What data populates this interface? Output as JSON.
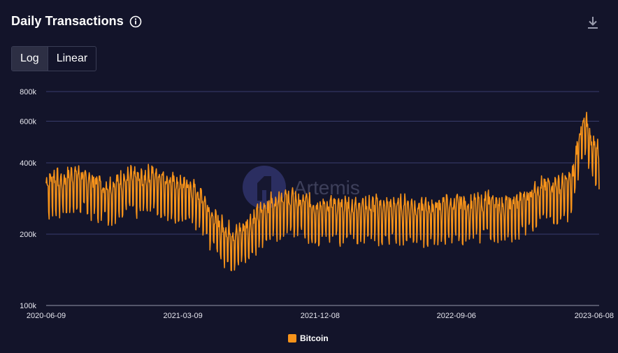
{
  "header": {
    "title": "Daily Transactions",
    "info_icon": "info-icon",
    "download_icon": "download-icon"
  },
  "scale_toggle": {
    "options": [
      "Log",
      "Linear"
    ],
    "selected": "Log"
  },
  "watermark": {
    "text": "Artemis"
  },
  "colors": {
    "background": "#13142a",
    "series": "#f7931a",
    "grid": "#3a3d6e"
  },
  "chart_data": {
    "type": "line",
    "y_scale": "log",
    "ylim": [
      100000,
      800000
    ],
    "y_ticks": [
      {
        "value": 100000,
        "label": "100k"
      },
      {
        "value": 200000,
        "label": "200k"
      },
      {
        "value": 400000,
        "label": "400k"
      },
      {
        "value": 600000,
        "label": "600k"
      },
      {
        "value": 800000,
        "label": "800k"
      }
    ],
    "x_ticks": [
      "2020-06-09",
      "2021-03-09",
      "2021-12-08",
      "2022-09-06",
      "2023-06-08"
    ],
    "xlim": [
      "2020-06-09",
      "2023-06-18"
    ],
    "grid": true,
    "legend_position": "bottom-center",
    "series": [
      {
        "name": "Bitcoin",
        "color": "#f7931a",
        "points": [
          [
            "2020-06-09",
            310000
          ],
          [
            "2020-06-23",
            330000
          ],
          [
            "2020-07-07",
            315000
          ],
          [
            "2020-07-21",
            325000
          ],
          [
            "2020-08-04",
            340000
          ],
          [
            "2020-08-18",
            330000
          ],
          [
            "2020-09-01",
            320000
          ],
          [
            "2020-09-15",
            315000
          ],
          [
            "2020-09-29",
            305000
          ],
          [
            "2020-10-13",
            300000
          ],
          [
            "2020-10-27",
            310000
          ],
          [
            "2020-11-10",
            320000
          ],
          [
            "2020-11-24",
            330000
          ],
          [
            "2020-12-08",
            320000
          ],
          [
            "2020-12-22",
            325000
          ],
          [
            "2021-01-05",
            340000
          ],
          [
            "2021-01-19",
            330000
          ],
          [
            "2021-02-02",
            320000
          ],
          [
            "2021-02-16",
            310000
          ],
          [
            "2021-03-02",
            300000
          ],
          [
            "2021-03-16",
            305000
          ],
          [
            "2021-03-30",
            290000
          ],
          [
            "2021-04-13",
            280000
          ],
          [
            "2021-04-27",
            250000
          ],
          [
            "2021-05-11",
            220000
          ],
          [
            "2021-05-25",
            205000
          ],
          [
            "2021-06-08",
            195000
          ],
          [
            "2021-06-22",
            185000
          ],
          [
            "2021-07-06",
            200000
          ],
          [
            "2021-07-20",
            210000
          ],
          [
            "2021-08-03",
            225000
          ],
          [
            "2021-08-17",
            240000
          ],
          [
            "2021-08-31",
            255000
          ],
          [
            "2021-09-14",
            260000
          ],
          [
            "2021-09-28",
            270000
          ],
          [
            "2021-10-12",
            265000
          ],
          [
            "2021-10-26",
            260000
          ],
          [
            "2021-11-09",
            255000
          ],
          [
            "2021-11-23",
            250000
          ],
          [
            "2021-12-07",
            245000
          ],
          [
            "2021-12-21",
            250000
          ],
          [
            "2022-01-04",
            248000
          ],
          [
            "2022-01-18",
            245000
          ],
          [
            "2022-02-01",
            250000
          ],
          [
            "2022-02-15",
            248000
          ],
          [
            "2022-03-01",
            250000
          ],
          [
            "2022-03-15",
            248000
          ],
          [
            "2022-03-29",
            250000
          ],
          [
            "2022-04-12",
            245000
          ],
          [
            "2022-04-26",
            245000
          ],
          [
            "2022-05-10",
            248000
          ],
          [
            "2022-05-24",
            250000
          ],
          [
            "2022-06-07",
            248000
          ],
          [
            "2022-06-21",
            245000
          ],
          [
            "2022-07-05",
            242000
          ],
          [
            "2022-07-19",
            245000
          ],
          [
            "2022-08-02",
            248000
          ],
          [
            "2022-08-16",
            250000
          ],
          [
            "2022-08-30",
            250000
          ],
          [
            "2022-09-13",
            252000
          ],
          [
            "2022-09-27",
            250000
          ],
          [
            "2022-10-11",
            252000
          ],
          [
            "2022-10-25",
            255000
          ],
          [
            "2022-11-08",
            260000
          ],
          [
            "2022-11-22",
            255000
          ],
          [
            "2022-12-06",
            252000
          ],
          [
            "2022-12-20",
            250000
          ],
          [
            "2023-01-03",
            255000
          ],
          [
            "2023-01-17",
            265000
          ],
          [
            "2023-01-31",
            280000
          ],
          [
            "2023-02-14",
            295000
          ],
          [
            "2023-02-28",
            300000
          ],
          [
            "2023-03-14",
            305000
          ],
          [
            "2023-03-28",
            300000
          ],
          [
            "2023-04-11",
            310000
          ],
          [
            "2023-04-25",
            320000
          ],
          [
            "2023-05-09",
            500000
          ],
          [
            "2023-05-23",
            560000
          ],
          [
            "2023-06-06",
            450000
          ],
          [
            "2023-06-18",
            420000
          ]
        ]
      }
    ]
  }
}
